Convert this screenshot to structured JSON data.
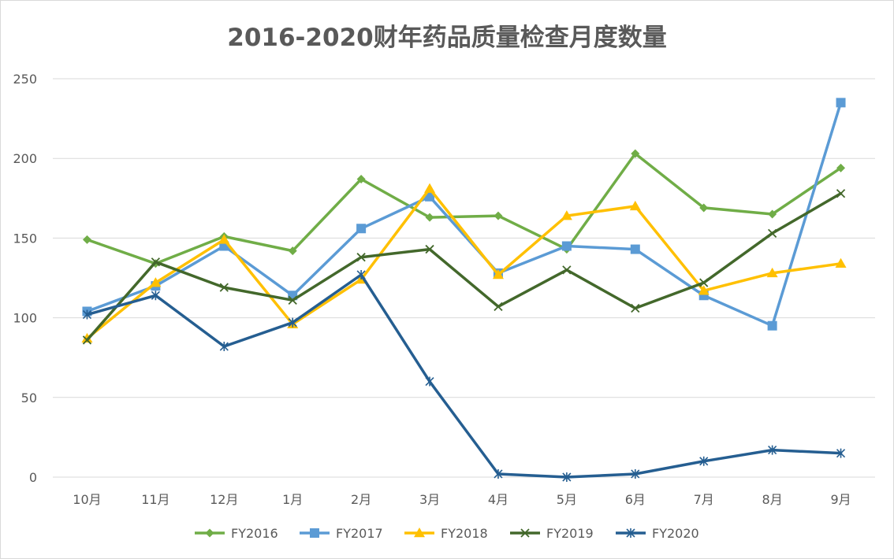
{
  "chart_data": {
    "type": "line",
    "title": "2016-2020财年药品质量检查月度数量",
    "xlabel": "",
    "ylabel": "",
    "categories": [
      "10月",
      "11月",
      "12月",
      "1月",
      "2月",
      "3月",
      "4月",
      "5月",
      "6月",
      "7月",
      "8月",
      "9月"
    ],
    "ylim": [
      0,
      250
    ],
    "yticks": [
      0,
      50,
      100,
      150,
      200,
      250
    ],
    "grid": true,
    "legend_position": "bottom",
    "series": [
      {
        "name": "FY2016",
        "color": "#70ad47",
        "marker": "diamond",
        "values": [
          149,
          134,
          151,
          142,
          187,
          163,
          164,
          143,
          203,
          169,
          165,
          194
        ]
      },
      {
        "name": "FY2017",
        "color": "#5b9bd5",
        "marker": "square",
        "values": [
          104,
          120,
          145,
          114,
          156,
          176,
          128,
          145,
          143,
          114,
          95,
          235
        ]
      },
      {
        "name": "FY2018",
        "color": "#ffc000",
        "marker": "triangle",
        "values": [
          87,
          122,
          149,
          96,
          124,
          181,
          127,
          164,
          170,
          117,
          128,
          134
        ]
      },
      {
        "name": "FY2019",
        "color": "#43682b",
        "marker": "x",
        "values": [
          86,
          135,
          119,
          111,
          138,
          143,
          107,
          130,
          106,
          122,
          153,
          178
        ]
      },
      {
        "name": "FY2020",
        "color": "#255e91",
        "marker": "star",
        "values": [
          102,
          114,
          82,
          97,
          127,
          60,
          2,
          0,
          2,
          10,
          17,
          15
        ]
      }
    ]
  }
}
